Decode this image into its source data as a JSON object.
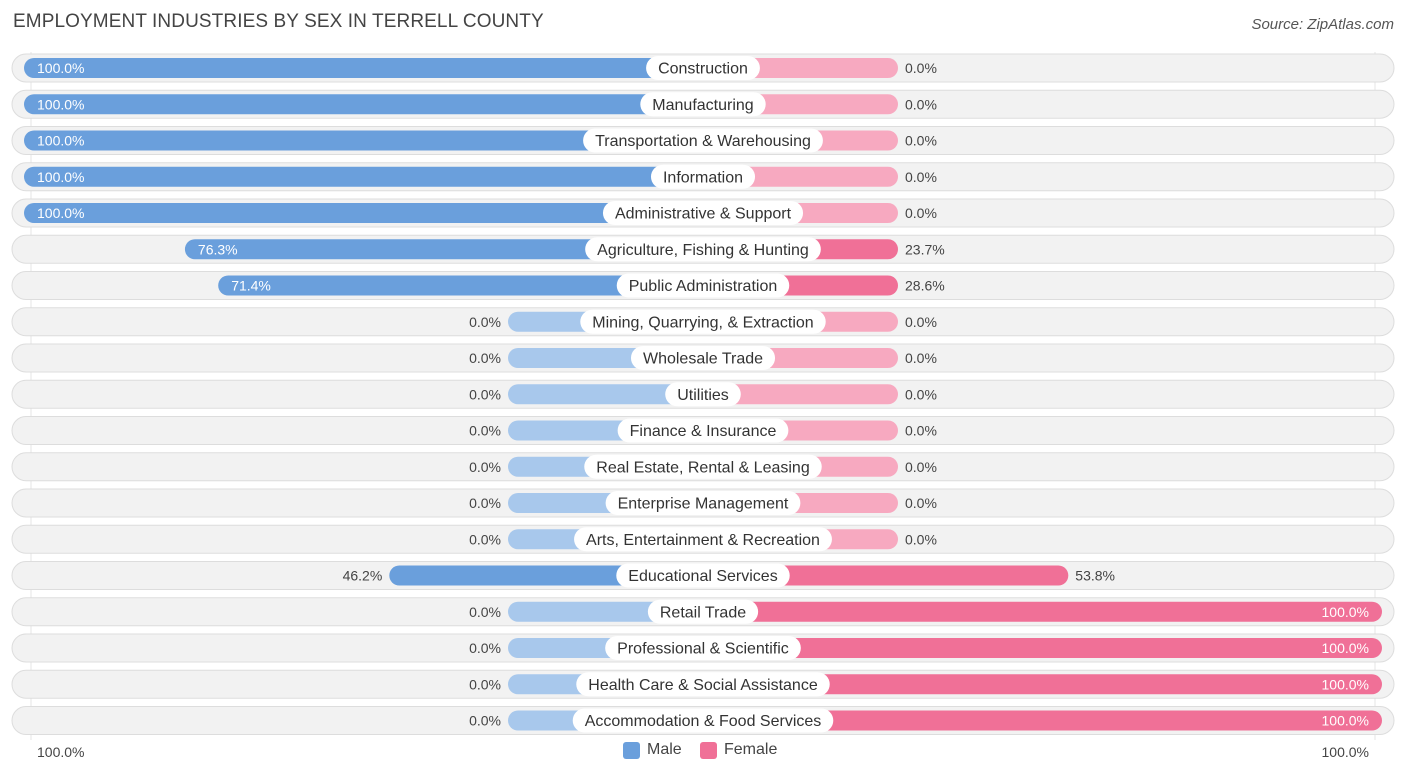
{
  "title": "EMPLOYMENT INDUSTRIES BY SEX IN TERRELL COUNTY",
  "source": "Source: ZipAtlas.com",
  "colors": {
    "male_strong": "#6a9fdc",
    "male_light": "#a8c8ec",
    "female_strong": "#f07097",
    "female_light": "#f7a9c0",
    "row_bg": "#f0f0f0",
    "row_border": "#dddddd"
  },
  "legend": {
    "male": "Male",
    "female": "Female"
  },
  "axis": {
    "left_label": "100.0%",
    "right_label": "100.0%"
  },
  "chart_data": {
    "type": "bar",
    "orientation": "horizontal-diverging",
    "title": "EMPLOYMENT INDUSTRIES BY SEX IN TERRELL COUNTY",
    "xlim": [
      -100,
      100
    ],
    "series_names": [
      "Male",
      "Female"
    ],
    "categories": [
      "Construction",
      "Manufacturing",
      "Transportation & Warehousing",
      "Information",
      "Administrative & Support",
      "Agriculture, Fishing & Hunting",
      "Public Administration",
      "Mining, Quarrying, & Extraction",
      "Wholesale Trade",
      "Utilities",
      "Finance & Insurance",
      "Real Estate, Rental & Leasing",
      "Enterprise Management",
      "Arts, Entertainment & Recreation",
      "Educational Services",
      "Retail Trade",
      "Professional & Scientific",
      "Health Care & Social Assistance",
      "Accommodation & Food Services"
    ],
    "male": [
      100.0,
      100.0,
      100.0,
      100.0,
      100.0,
      76.3,
      71.4,
      0.0,
      0.0,
      0.0,
      0.0,
      0.0,
      0.0,
      0.0,
      46.2,
      0.0,
      0.0,
      0.0,
      0.0
    ],
    "female": [
      0.0,
      0.0,
      0.0,
      0.0,
      0.0,
      23.7,
      28.6,
      0.0,
      0.0,
      0.0,
      0.0,
      0.0,
      0.0,
      0.0,
      53.8,
      100.0,
      100.0,
      100.0,
      100.0
    ],
    "male_labels": [
      "100.0%",
      "100.0%",
      "100.0%",
      "100.0%",
      "100.0%",
      "76.3%",
      "71.4%",
      "0.0%",
      "0.0%",
      "0.0%",
      "0.0%",
      "0.0%",
      "0.0%",
      "0.0%",
      "46.2%",
      "0.0%",
      "0.0%",
      "0.0%",
      "0.0%"
    ],
    "female_labels": [
      "0.0%",
      "0.0%",
      "0.0%",
      "0.0%",
      "0.0%",
      "23.7%",
      "28.6%",
      "0.0%",
      "0.0%",
      "0.0%",
      "0.0%",
      "0.0%",
      "0.0%",
      "0.0%",
      "53.8%",
      "100.0%",
      "100.0%",
      "100.0%",
      "100.0%"
    ]
  }
}
